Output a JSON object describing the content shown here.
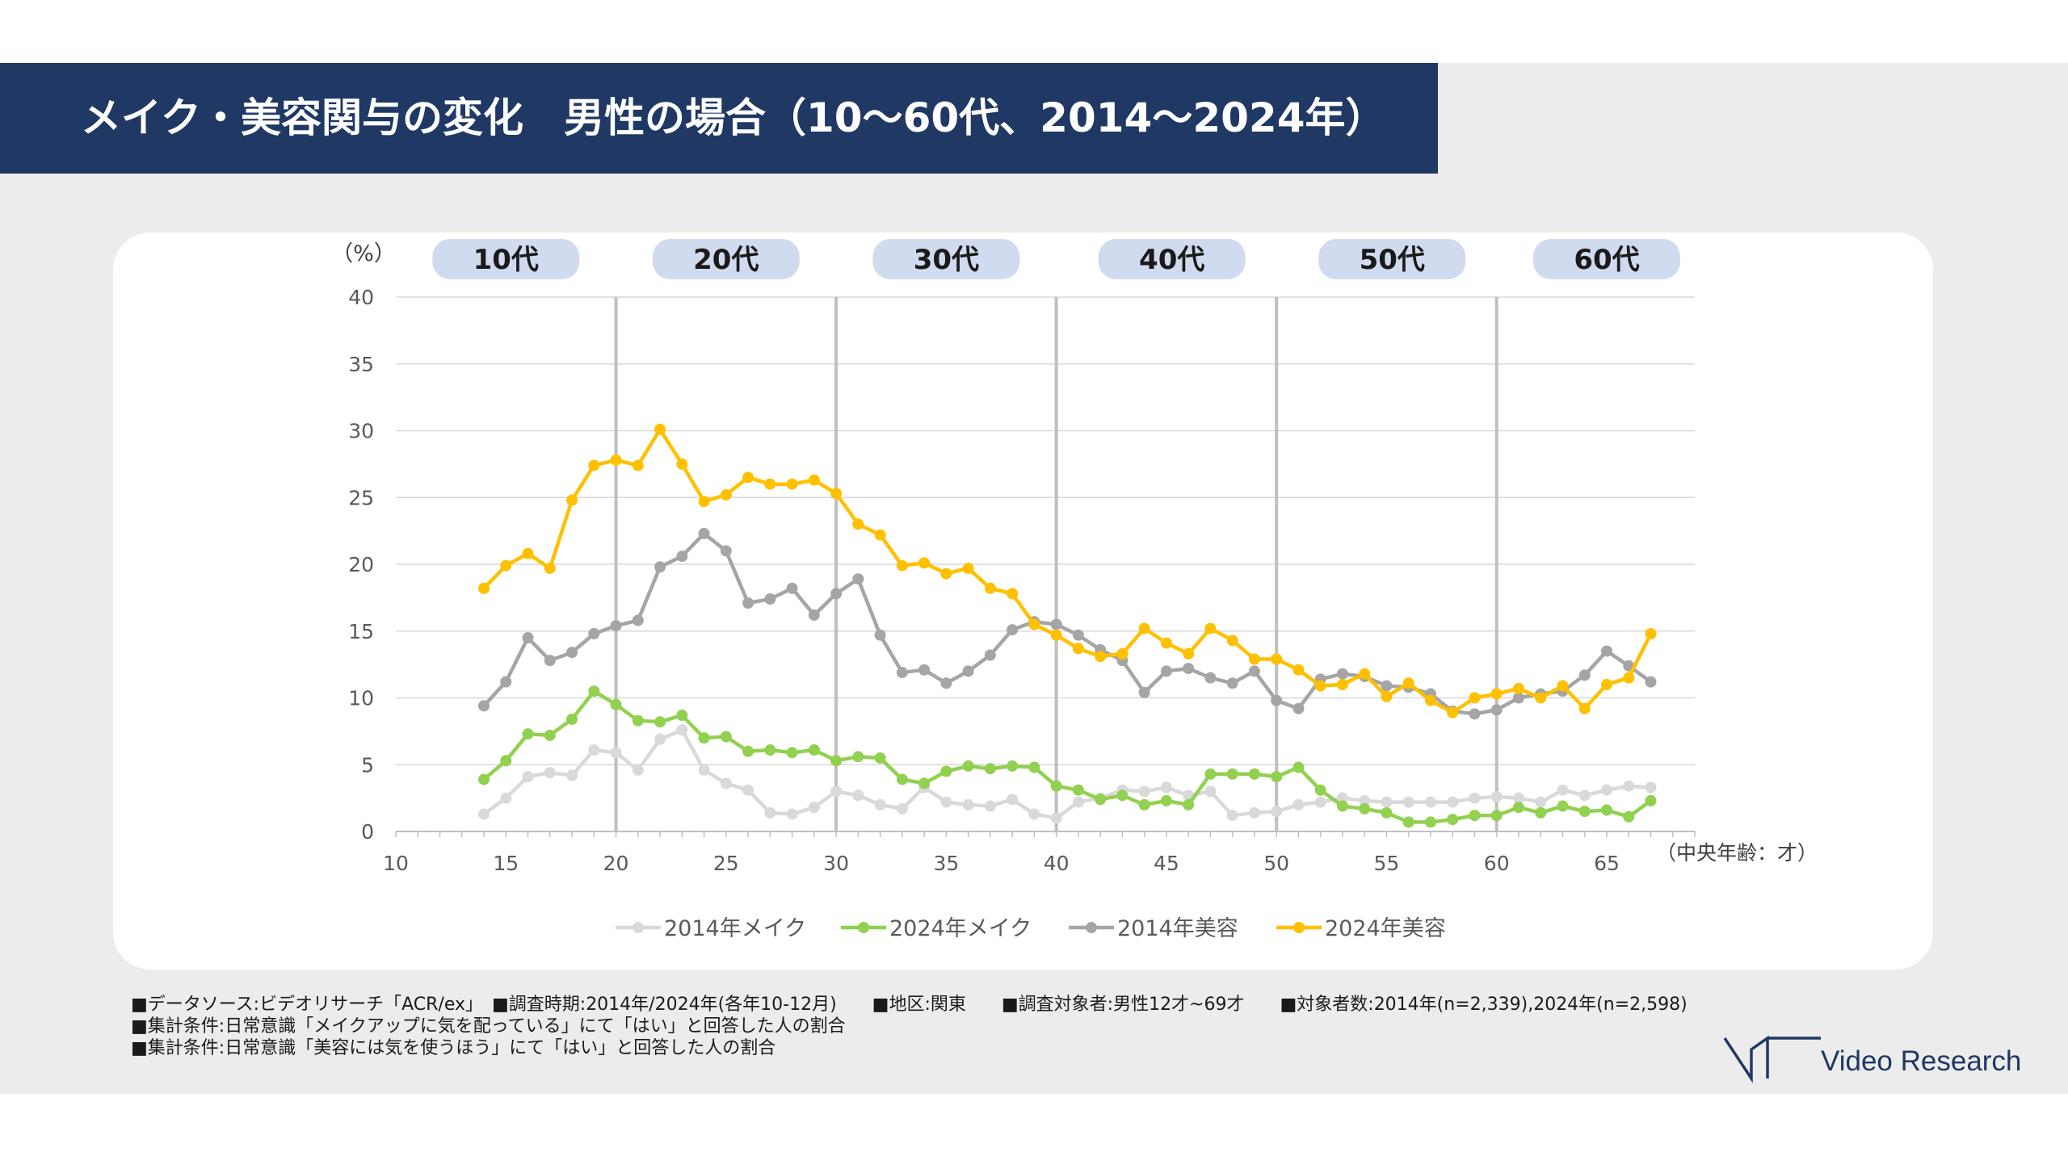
{
  "title": "メイク・美容関与の変化　男性の場合（10〜60代、2014〜2024年）",
  "chart_data": {
    "type": "line",
    "title": "",
    "y_unit_label": "（%）",
    "x_unit_label": "（中央年齢：才）",
    "xlim": [
      10,
      69
    ],
    "ylim": [
      0,
      40
    ],
    "x_ticks": [
      10,
      15,
      20,
      25,
      30,
      35,
      40,
      45,
      50,
      55,
      60,
      65
    ],
    "y_ticks": [
      0,
      5,
      10,
      15,
      20,
      25,
      30,
      35,
      40
    ],
    "grid": true,
    "legend_position": "bottom",
    "age_groups": [
      {
        "label": "10代",
        "x_center": 15
      },
      {
        "label": "20代",
        "x_center": 25
      },
      {
        "label": "30代",
        "x_center": 35
      },
      {
        "label": "40代",
        "x_center": 45.25
      },
      {
        "label": "50代",
        "x_center": 55.25
      },
      {
        "label": "60代",
        "x_center": 65
      },
      {
        "label": "",
        "x_center": 0
      }
    ],
    "group_dividers": [
      20,
      30,
      40,
      50,
      60
    ],
    "x": [
      14,
      15,
      16,
      17,
      18,
      19,
      20,
      21,
      22,
      23,
      24,
      25,
      26,
      27,
      28,
      29,
      30,
      31,
      32,
      33,
      34,
      35,
      36,
      37,
      38,
      39,
      40,
      41,
      42,
      43,
      44,
      45,
      46,
      47,
      48,
      49,
      50,
      51,
      52,
      53,
      54,
      55,
      56,
      57,
      58,
      59,
      60,
      61,
      62,
      63,
      64,
      65,
      66,
      67
    ],
    "series": [
      {
        "name": "2014年メイク",
        "color": "#d9d9d9",
        "values": [
          1.3,
          2.5,
          4.1,
          4.4,
          4.2,
          6.1,
          5.9,
          4.6,
          6.9,
          7.6,
          4.6,
          3.6,
          3.1,
          1.4,
          1.3,
          1.8,
          3.0,
          2.7,
          2.0,
          1.7,
          3.3,
          2.2,
          2.0,
          1.9,
          2.4,
          1.3,
          1.0,
          2.2,
          2.5,
          3.1,
          3.0,
          3.3,
          2.7,
          3.0,
          1.2,
          1.4,
          1.5,
          2.0,
          2.2,
          2.5,
          2.3,
          2.2,
          2.2,
          2.2,
          2.2,
          2.5,
          2.6,
          2.5,
          2.2,
          3.1,
          2.7,
          3.1,
          3.4,
          3.3
        ]
      },
      {
        "name": "2024年メイク",
        "color": "#92d050",
        "values": [
          3.9,
          5.3,
          7.3,
          7.2,
          8.4,
          10.5,
          9.5,
          8.3,
          8.2,
          8.7,
          7.0,
          7.1,
          6.0,
          6.1,
          5.9,
          6.1,
          5.3,
          5.6,
          5.5,
          3.9,
          3.6,
          4.5,
          4.9,
          4.7,
          4.9,
          4.8,
          3.4,
          3.1,
          2.4,
          2.7,
          2.0,
          2.3,
          2.0,
          4.3,
          4.3,
          4.3,
          4.1,
          4.8,
          3.1,
          1.9,
          1.7,
          1.4,
          0.7,
          0.7,
          0.9,
          1.2,
          1.2,
          1.8,
          1.4,
          1.9,
          1.5,
          1.6,
          1.1,
          2.3
        ]
      },
      {
        "name": "2014年美容",
        "color": "#a5a5a5",
        "values": [
          9.4,
          11.2,
          14.5,
          12.8,
          13.4,
          14.8,
          15.4,
          15.8,
          19.8,
          20.6,
          22.3,
          21.0,
          17.1,
          17.4,
          18.2,
          16.2,
          17.8,
          18.9,
          14.7,
          11.9,
          12.1,
          11.1,
          12.0,
          13.2,
          15.1,
          15.7,
          15.5,
          14.7,
          13.6,
          12.8,
          10.4,
          12.0,
          12.2,
          11.5,
          11.1,
          12.0,
          9.8,
          9.2,
          11.4,
          11.8,
          11.6,
          10.9,
          10.8,
          10.3,
          9.0,
          8.8,
          9.1,
          10.0,
          10.3,
          10.5,
          11.7,
          13.5,
          12.4,
          11.2
        ]
      },
      {
        "name": "2024年美容",
        "color": "#ffc000",
        "values": [
          18.2,
          19.9,
          20.8,
          19.7,
          24.8,
          27.4,
          27.8,
          27.4,
          30.1,
          27.5,
          24.7,
          25.2,
          26.5,
          26.0,
          26.0,
          26.3,
          25.3,
          23.0,
          22.2,
          19.9,
          20.1,
          19.3,
          19.7,
          18.2,
          17.8,
          15.5,
          14.7,
          13.7,
          13.1,
          13.3,
          15.2,
          14.1,
          13.3,
          15.2,
          14.3,
          12.9,
          12.9,
          12.1,
          10.9,
          11.0,
          11.8,
          10.1,
          11.1,
          9.8,
          8.9,
          10.0,
          10.3,
          10.7,
          10.0,
          10.9,
          9.2,
          11.0,
          11.5,
          14.8
        ]
      }
    ]
  },
  "footer": {
    "line1": "■データソース:ビデオリサーチ「ACR/ex」　■調査時期:2014年/2024年(各年10-12月)　　■地区:関東　　■調査対象者:男性12才~69才　　■対象者数:2014年(n=2,339),2024年(n=2,598)",
    "line2": "■集計条件:日常意識「メイクアップに気を配っている」にて「はい」と回答した人の割合",
    "line3": "■集計条件:日常意識「美容には気を使うほう」にて「はい」と回答した人の割合"
  },
  "logo": {
    "text": "Video Research",
    "color": "#1f3864"
  },
  "colors": {
    "title_bar": "#1f3864",
    "background": "#ececec",
    "badge": "#d1dbef",
    "grid": "#d9d9d9",
    "divider": "#bfbfbf"
  }
}
